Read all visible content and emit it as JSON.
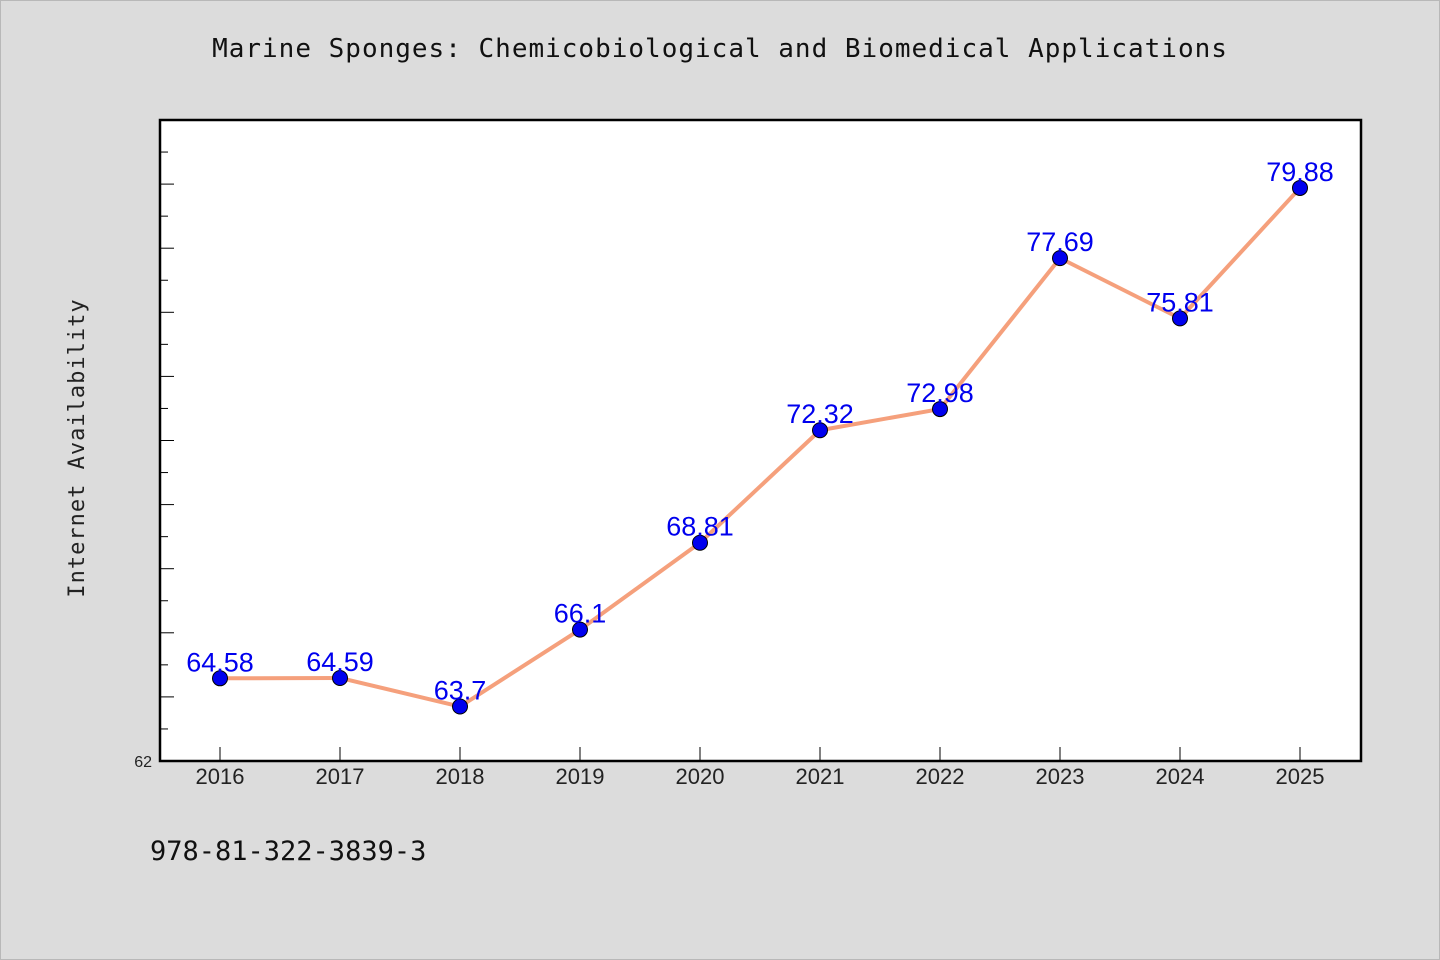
{
  "chart_data": {
    "type": "line",
    "title": "Marine Sponges: Chemicobiological and Biomedical Applications",
    "xlabel": "",
    "ylabel": "Internet Availability",
    "categories": [
      "2016",
      "2017",
      "2018",
      "2019",
      "2020",
      "2021",
      "2022",
      "2023",
      "2024",
      "2025"
    ],
    "series": [
      {
        "values": [
          64.58,
          64.59,
          63.7,
          66.1,
          68.81,
          72.32,
          72.98,
          77.69,
          75.81,
          79.88
        ],
        "data_labels": [
          "64.58",
          "64.59",
          "63.7",
          "66.1",
          "68.81",
          "72.32",
          "72.98",
          "77.69",
          "75.81",
          "79.88"
        ]
      }
    ],
    "ylim": [
      62,
      82
    ],
    "yticks_labeled": [
      "62"
    ],
    "grid": false,
    "legend": "none"
  },
  "footer": {
    "isbn": "978-81-322-3839-3"
  },
  "colors": {
    "background": "#dcdcdc",
    "plot_background": "#ffffff",
    "line": "#f5a07c",
    "marker": "#0000ee",
    "data_label": "#0000ee"
  }
}
